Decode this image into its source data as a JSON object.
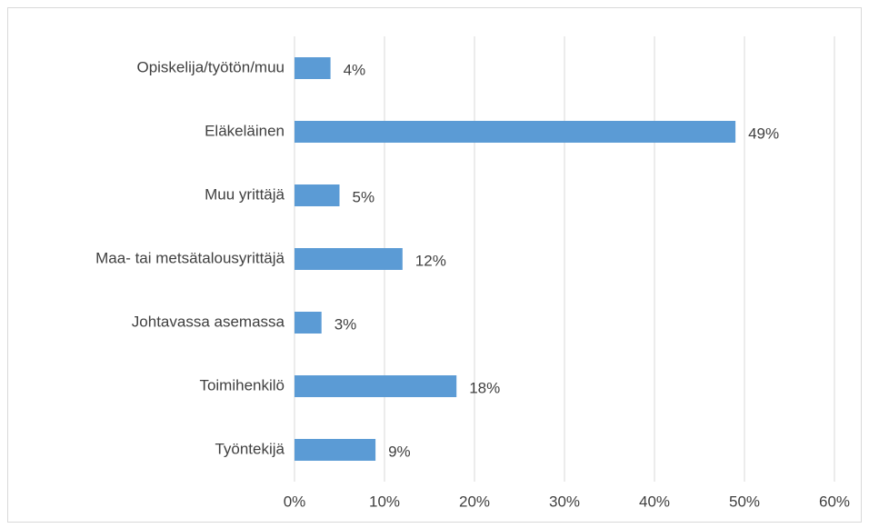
{
  "chart_data": {
    "type": "barh",
    "categories": [
      "Opiskelija/työtön/muu",
      "Eläkeläinen",
      "Muu yrittäjä",
      "Maa- tai metsätalousyrittäjä",
      "Johtavassa asemassa",
      "Toimihenkilö",
      "Työntekijä"
    ],
    "values": [
      4,
      49,
      5,
      12,
      3,
      18,
      9
    ],
    "value_labels": [
      "4%",
      "49%",
      "5%",
      "12%",
      "3%",
      "18%",
      "9%"
    ],
    "color": "#5b9bd5",
    "xlim": [
      0,
      60
    ],
    "xticks": [
      {
        "value": 0,
        "label": "0%"
      },
      {
        "value": 10,
        "label": "10%"
      },
      {
        "value": 20,
        "label": "20%"
      },
      {
        "value": 30,
        "label": "30%"
      },
      {
        "value": 40,
        "label": "40%"
      },
      {
        "value": 50,
        "label": "50%"
      },
      {
        "value": 60,
        "label": "60%"
      }
    ],
    "grid": true
  }
}
